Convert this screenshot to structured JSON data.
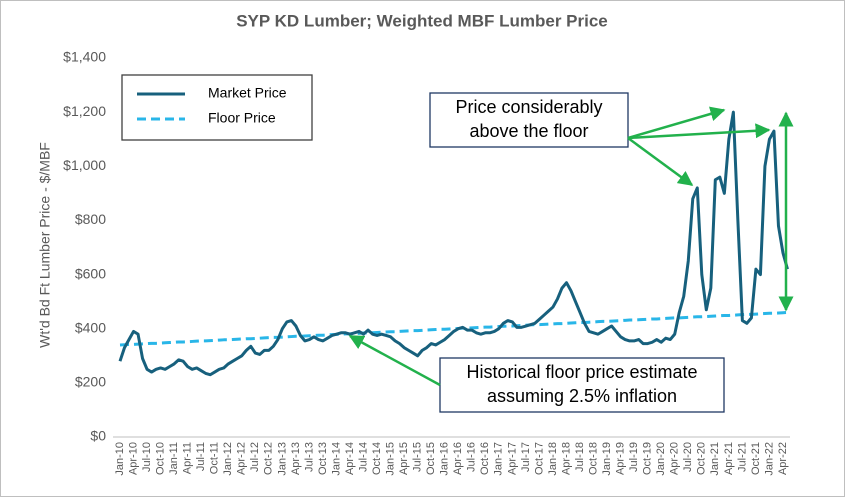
{
  "chart_data": {
    "type": "line",
    "title": "SYP KD Lumber; Weighted MBF Lumber Price",
    "y_label": "Wt'd Bd Ft Lumber Price - $/MBF",
    "categories": [
      "Jan-10",
      null,
      null,
      "Apr-10",
      null,
      null,
      "Jul-10",
      null,
      null,
      "Oct-10",
      null,
      null,
      "Jan-11",
      null,
      null,
      "Apr-11",
      null,
      null,
      "Jul-11",
      null,
      null,
      "Oct-11",
      null,
      null,
      "Jan-12",
      null,
      null,
      "Apr-12",
      null,
      null,
      "Jul-12",
      null,
      null,
      "Oct-12",
      null,
      null,
      "Jan-13",
      null,
      null,
      "Apr-13",
      null,
      null,
      "Jul-13",
      null,
      null,
      "Oct-13",
      null,
      null,
      "Jan-14",
      null,
      null,
      "Apr-14",
      null,
      null,
      "Jul-14",
      null,
      null,
      "Oct-14",
      null,
      null,
      "Jan-15",
      null,
      null,
      "Apr-15",
      null,
      null,
      "Jul-15",
      null,
      null,
      "Oct-15",
      null,
      null,
      "Jan-16",
      null,
      null,
      "Apr-16",
      null,
      null,
      "Jul-16",
      null,
      null,
      "Oct-16",
      null,
      null,
      "Jan-17",
      null,
      null,
      "Apr-17",
      null,
      null,
      "Jul-17",
      null,
      null,
      "Oct-17",
      null,
      null,
      "Jan-18",
      null,
      null,
      "Apr-18",
      null,
      null,
      "Jul-18",
      null,
      null,
      "Oct-18",
      null,
      null,
      "Jan-19",
      null,
      null,
      "Apr-19",
      null,
      null,
      "Jul-19",
      null,
      null,
      "Oct-19",
      null,
      null,
      "Jan-20",
      null,
      null,
      "Apr-20",
      null,
      null,
      "Jul-20",
      null,
      null,
      "Oct-20",
      null,
      null,
      "Jan-21",
      null,
      null,
      "Apr-21",
      null,
      null,
      "Jul-21",
      null,
      null,
      "Oct-21",
      null,
      null,
      "Jan-22",
      null,
      null,
      "Apr-22",
      null
    ],
    "series": [
      {
        "name": "Market Price",
        "color": "#17607d",
        "dash": false,
        "values": [
          280,
          330,
          360,
          390,
          380,
          290,
          250,
          240,
          250,
          255,
          250,
          260,
          270,
          285,
          280,
          260,
          250,
          255,
          245,
          235,
          230,
          240,
          250,
          255,
          270,
          280,
          290,
          300,
          320,
          335,
          310,
          305,
          320,
          320,
          335,
          360,
          400,
          425,
          430,
          410,
          375,
          355,
          360,
          370,
          360,
          355,
          365,
          375,
          380,
          385,
          385,
          380,
          385,
          390,
          380,
          395,
          380,
          375,
          380,
          375,
          370,
          355,
          345,
          330,
          320,
          310,
          300,
          320,
          330,
          345,
          340,
          350,
          360,
          375,
          390,
          400,
          405,
          395,
          395,
          385,
          380,
          385,
          385,
          390,
          400,
          420,
          430,
          425,
          405,
          405,
          410,
          415,
          420,
          435,
          450,
          465,
          480,
          510,
          550,
          570,
          540,
          500,
          460,
          420,
          390,
          385,
          380,
          390,
          400,
          410,
          390,
          370,
          360,
          355,
          355,
          360,
          345,
          345,
          350,
          360,
          350,
          365,
          360,
          380,
          460,
          520,
          650,
          880,
          920,
          600,
          470,
          550,
          950,
          960,
          900,
          1100,
          1200,
          800,
          430,
          420,
          440,
          620,
          600,
          1000,
          1100,
          1130,
          780,
          680,
          620
        ]
      },
      {
        "name": "Floor Price",
        "color": "#29b6e8",
        "dash": true,
        "values": [
          340,
          341,
          342,
          342,
          343,
          344,
          345,
          346,
          346,
          347,
          348,
          349,
          350,
          351,
          351,
          352,
          353,
          354,
          355,
          355,
          356,
          357,
          358,
          359,
          359,
          360,
          361,
          362,
          363,
          363,
          364,
          365,
          366,
          367,
          368,
          368,
          369,
          370,
          371,
          372,
          372,
          373,
          374,
          375,
          376,
          376,
          377,
          378,
          379,
          380,
          381,
          381,
          382,
          383,
          384,
          385,
          385,
          386,
          387,
          388,
          389,
          389,
          390,
          391,
          392,
          393,
          393,
          394,
          395,
          396,
          397,
          398,
          398,
          399,
          400,
          401,
          402,
          402,
          403,
          404,
          405,
          406,
          406,
          407,
          408,
          409,
          410,
          410,
          411,
          412,
          413,
          414,
          415,
          415,
          416,
          417,
          418,
          419,
          419,
          420,
          421,
          422,
          423,
          423,
          424,
          425,
          426,
          427,
          427,
          428,
          429,
          430,
          431,
          432,
          432,
          433,
          434,
          435,
          436,
          436,
          437,
          438,
          439,
          440,
          440,
          441,
          442,
          443,
          444,
          444,
          445,
          446,
          447,
          448,
          449,
          449,
          450,
          451,
          452,
          453,
          453,
          454,
          455,
          456,
          457,
          457,
          458,
          459,
          460
        ]
      }
    ],
    "ylim": [
      0,
      1400
    ],
    "yticks": [
      {
        "value": 0,
        "label": "$0"
      },
      {
        "value": 200,
        "label": "$200"
      },
      {
        "value": 400,
        "label": "$400"
      },
      {
        "value": 600,
        "label": "$600"
      },
      {
        "value": 800,
        "label": "$800"
      },
      {
        "value": 1000,
        "label": "$1,000"
      },
      {
        "value": 1200,
        "label": "$1,200"
      },
      {
        "value": 1400,
        "label": "$1,400"
      }
    ],
    "grid": false,
    "annotations": [
      {
        "lines": [
          "Price considerably",
          "above the floor"
        ]
      },
      {
        "lines": [
          "Historical floor price estimate",
          "assuming 2.5% inflation"
        ]
      }
    ]
  }
}
